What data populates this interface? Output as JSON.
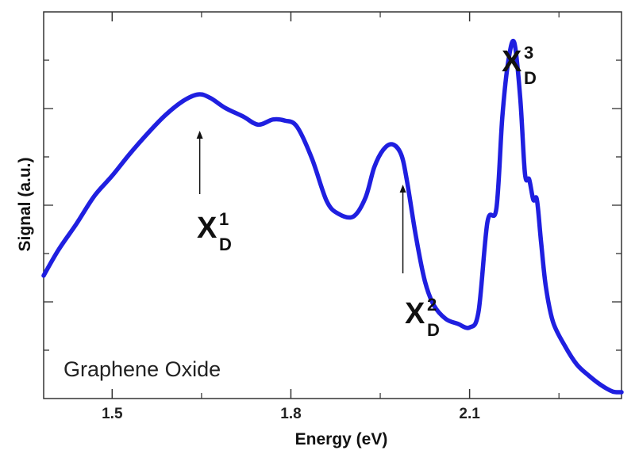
{
  "chart_data": {
    "type": "line",
    "title": "",
    "xlabel": "Energy (eV)",
    "ylabel": "Signal (a.u.)",
    "xlim": [
      1.385,
      2.355
    ],
    "ylim": [
      0,
      1
    ],
    "x_ticks": [
      1.5,
      1.8,
      2.1
    ],
    "x_tick_labels": [
      "1.5",
      "1.8",
      "2.1"
    ],
    "y_tick_labels": "none",
    "grid": false,
    "legend": "none",
    "line_color": "#1f1fe0",
    "inset_text": "Graphene Oxide",
    "series": [
      {
        "name": "",
        "x": [
          1.385,
          1.41,
          1.44,
          1.47,
          1.5,
          1.53,
          1.56,
          1.59,
          1.62,
          1.645,
          1.665,
          1.69,
          1.72,
          1.745,
          1.77,
          1.79,
          1.81,
          1.835,
          1.86,
          1.88,
          1.905,
          1.925,
          1.94,
          1.955,
          1.97,
          1.985,
          1.995,
          2.01,
          2.025,
          2.04,
          2.06,
          2.08,
          2.1,
          2.115,
          2.13,
          2.145,
          2.155,
          2.165,
          2.175,
          2.185,
          2.193,
          2.2,
          2.207,
          2.213,
          2.22,
          2.228,
          2.24,
          2.26,
          2.28,
          2.3,
          2.32,
          2.34,
          2.355
        ],
        "y": [
          0.315,
          0.385,
          0.455,
          0.53,
          0.585,
          0.645,
          0.7,
          0.75,
          0.788,
          0.805,
          0.795,
          0.768,
          0.745,
          0.723,
          0.737,
          0.734,
          0.718,
          0.633,
          0.517,
          0.482,
          0.475,
          0.525,
          0.608,
          0.655,
          0.67,
          0.643,
          0.57,
          0.42,
          0.3,
          0.235,
          0.198,
          0.185,
          0.175,
          0.218,
          0.46,
          0.497,
          0.745,
          0.895,
          0.945,
          0.795,
          0.59,
          0.575,
          0.52,
          0.52,
          0.405,
          0.285,
          0.19,
          0.125,
          0.075,
          0.045,
          0.02,
          0.002,
          0.0
        ]
      }
    ],
    "annotations": [
      {
        "main": "X",
        "sub": "D",
        "sup": "1",
        "x": 1.647,
        "y": 0.795
      },
      {
        "main": "X",
        "sub": "D",
        "sup": "2",
        "x": 1.988,
        "y": 0.565
      },
      {
        "main": "X",
        "sub": "D",
        "sup": "3",
        "x": 2.193,
        "y": 0.975
      }
    ]
  }
}
